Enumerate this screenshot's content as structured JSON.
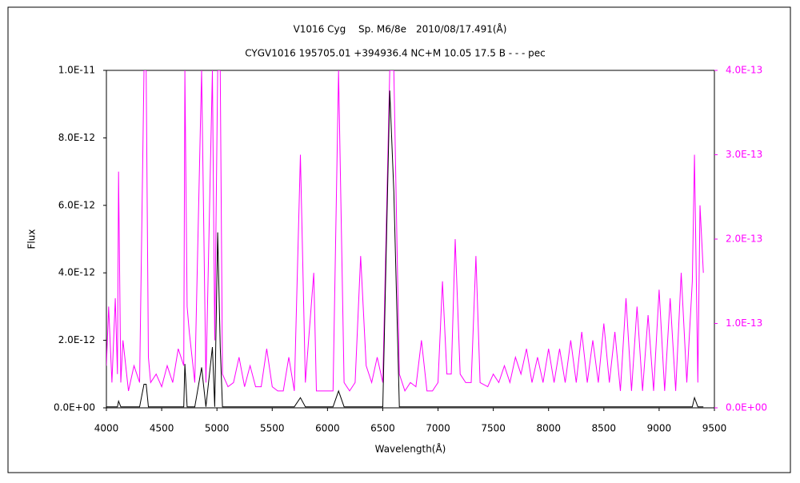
{
  "chart_data": {
    "type": "line",
    "title": "V1016 Cyg　 Sp. M6/8e　2010/08/17.491(Å)",
    "subtitle": "CYGV1016 195705.01 +394936.4 NC+M 10.05 17.5 B - - - pec",
    "x_label": "Wavelength(Å)",
    "y_label": "Flux",
    "xlim": [
      4000,
      9500
    ],
    "xticks": [
      4000,
      4500,
      5000,
      5500,
      6000,
      6500,
      7000,
      7500,
      8000,
      8500,
      9000,
      9500
    ],
    "ylim": [
      0,
      1e-11
    ],
    "yticks": [
      {
        "value": 0,
        "label": "0.0E+00"
      },
      {
        "value": 2e-12,
        "label": "2.0E-12"
      },
      {
        "value": 4e-12,
        "label": "4.0E-12"
      },
      {
        "value": 6e-12,
        "label": "6.0E-12"
      },
      {
        "value": 8e-12,
        "label": "8.0E-12"
      },
      {
        "value": 1e-11,
        "label": "1.0E-11"
      }
    ],
    "y2lim": [
      0,
      4e-13
    ],
    "y2ticks": [
      {
        "value": 0,
        "label": "0.0E+00"
      },
      {
        "value": 1e-13,
        "label": "1.0E-13"
      },
      {
        "value": 2e-13,
        "label": "2.0E-13"
      },
      {
        "value": 3e-13,
        "label": "3.0E-13"
      },
      {
        "value": 4e-13,
        "label": "4.0E-13"
      }
    ],
    "x": [
      4000,
      4020,
      4050,
      4080,
      4100,
      4110,
      4130,
      4150,
      4200,
      4250,
      4300,
      4340,
      4360,
      4380,
      4400,
      4450,
      4500,
      4550,
      4600,
      4650,
      4700,
      4710,
      4730,
      4750,
      4800,
      4861,
      4900,
      4959,
      4980,
      5007,
      5030,
      5050,
      5100,
      5150,
      5200,
      5250,
      5300,
      5350,
      5400,
      5450,
      5500,
      5550,
      5600,
      5650,
      5700,
      5755,
      5800,
      5876,
      5900,
      5950,
      6000,
      6050,
      6100,
      6150,
      6200,
      6250,
      6300,
      6350,
      6400,
      6450,
      6500,
      6563,
      6600,
      6650,
      6700,
      6750,
      6800,
      6850,
      6900,
      6950,
      7000,
      7040,
      7080,
      7120,
      7155,
      7200,
      7250,
      7300,
      7343,
      7380,
      7450,
      7500,
      7550,
      7600,
      7650,
      7700,
      7750,
      7800,
      7850,
      7900,
      7950,
      8000,
      8050,
      8100,
      8150,
      8200,
      8250,
      8300,
      8350,
      8400,
      8450,
      8500,
      8550,
      8600,
      8650,
      8700,
      8750,
      8800,
      8850,
      8900,
      8950,
      9000,
      9050,
      9100,
      9150,
      9200,
      9250,
      9300,
      9320,
      9350,
      9370,
      9400
    ],
    "series": [
      {
        "color": "#ff00ff",
        "axis": "y2",
        "values": [
          5e-14,
          1.2e-13,
          3e-14,
          1.3e-13,
          4e-14,
          2.8e-13,
          3e-14,
          8e-14,
          2e-14,
          5e-14,
          3e-14,
          4e-13,
          4e-13,
          6e-14,
          3e-14,
          4e-14,
          2.5e-14,
          5e-14,
          3e-14,
          7e-14,
          5e-14,
          4e-13,
          1.2e-13,
          9e-14,
          3e-14,
          4e-13,
          3e-14,
          4e-13,
          8e-14,
          4e-13,
          4e-13,
          4e-14,
          2.5e-14,
          3e-14,
          6e-14,
          2.5e-14,
          5e-14,
          2.5e-14,
          2.5e-14,
          7e-14,
          2.5e-14,
          2e-14,
          2e-14,
          6e-14,
          2e-14,
          3e-13,
          3e-14,
          1.6e-13,
          2e-14,
          2e-14,
          2e-14,
          2e-14,
          4e-13,
          3e-14,
          2e-14,
          3e-14,
          1.8e-13,
          5e-14,
          3e-14,
          6e-14,
          3e-14,
          4e-13,
          4e-13,
          4e-14,
          2e-14,
          3e-14,
          2.5e-14,
          8e-14,
          2e-14,
          2e-14,
          3e-14,
          1.5e-13,
          4e-14,
          4e-14,
          2e-13,
          4e-14,
          3e-14,
          3e-14,
          1.8e-13,
          3e-14,
          2.5e-14,
          4e-14,
          3e-14,
          5e-14,
          3e-14,
          6e-14,
          4e-14,
          7e-14,
          3e-14,
          6e-14,
          3e-14,
          7e-14,
          3e-14,
          7e-14,
          3e-14,
          8e-14,
          3e-14,
          9e-14,
          3e-14,
          8e-14,
          3e-14,
          1e-13,
          3e-14,
          9e-14,
          2e-14,
          1.3e-13,
          2e-14,
          1.2e-13,
          2e-14,
          1.1e-13,
          2e-14,
          1.4e-13,
          2e-14,
          1.3e-13,
          2e-14,
          1.6e-13,
          3e-14,
          1.5e-13,
          3e-13,
          3e-14,
          2.4e-13,
          1.6e-13
        ]
      },
      {
        "color": "#000000",
        "values": [
          3e-14,
          3e-14,
          3e-14,
          3e-14,
          3e-14,
          2e-13,
          3e-14,
          3e-14,
          3e-14,
          3e-14,
          3e-14,
          7e-13,
          7e-13,
          3e-14,
          3e-14,
          3e-14,
          3e-14,
          3e-14,
          3e-14,
          3e-14,
          3e-14,
          1.3e-12,
          3e-14,
          3e-14,
          3e-14,
          1.2e-12,
          3e-14,
          1.8e-12,
          3e-14,
          5.2e-12,
          1.8e-12,
          3e-14,
          3e-14,
          3e-14,
          3e-14,
          3e-14,
          3e-14,
          3e-14,
          3e-14,
          3e-14,
          3e-14,
          3e-14,
          3e-14,
          3e-14,
          3e-14,
          3e-13,
          3e-14,
          3e-14,
          3e-14,
          3e-14,
          3e-14,
          3e-14,
          5e-13,
          3e-14,
          3e-14,
          3e-14,
          3e-14,
          3e-14,
          3e-14,
          3e-14,
          3e-14,
          9.4e-12,
          6.4e-12,
          3e-14,
          3e-14,
          3e-14,
          3e-14,
          3e-14,
          3e-14,
          3e-14,
          3e-14,
          3e-14,
          3e-14,
          3e-14,
          3e-14,
          3e-14,
          3e-14,
          3e-14,
          3e-14,
          3e-14,
          3e-14,
          3e-14,
          3e-14,
          3e-14,
          3e-14,
          3e-14,
          3e-14,
          3e-14,
          3e-14,
          3e-14,
          3e-14,
          3e-14,
          3e-14,
          3e-14,
          3e-14,
          3e-14,
          3e-14,
          3e-14,
          3e-14,
          3e-14,
          3e-14,
          3e-14,
          3e-14,
          3e-14,
          3e-14,
          3e-14,
          3e-14,
          3e-14,
          3e-14,
          3e-14,
          3e-14,
          3e-14,
          3e-14,
          3e-14,
          3e-14,
          3e-14,
          3e-14,
          3e-14,
          3e-13,
          3e-14,
          3e-14,
          3e-14
        ]
      }
    ]
  }
}
